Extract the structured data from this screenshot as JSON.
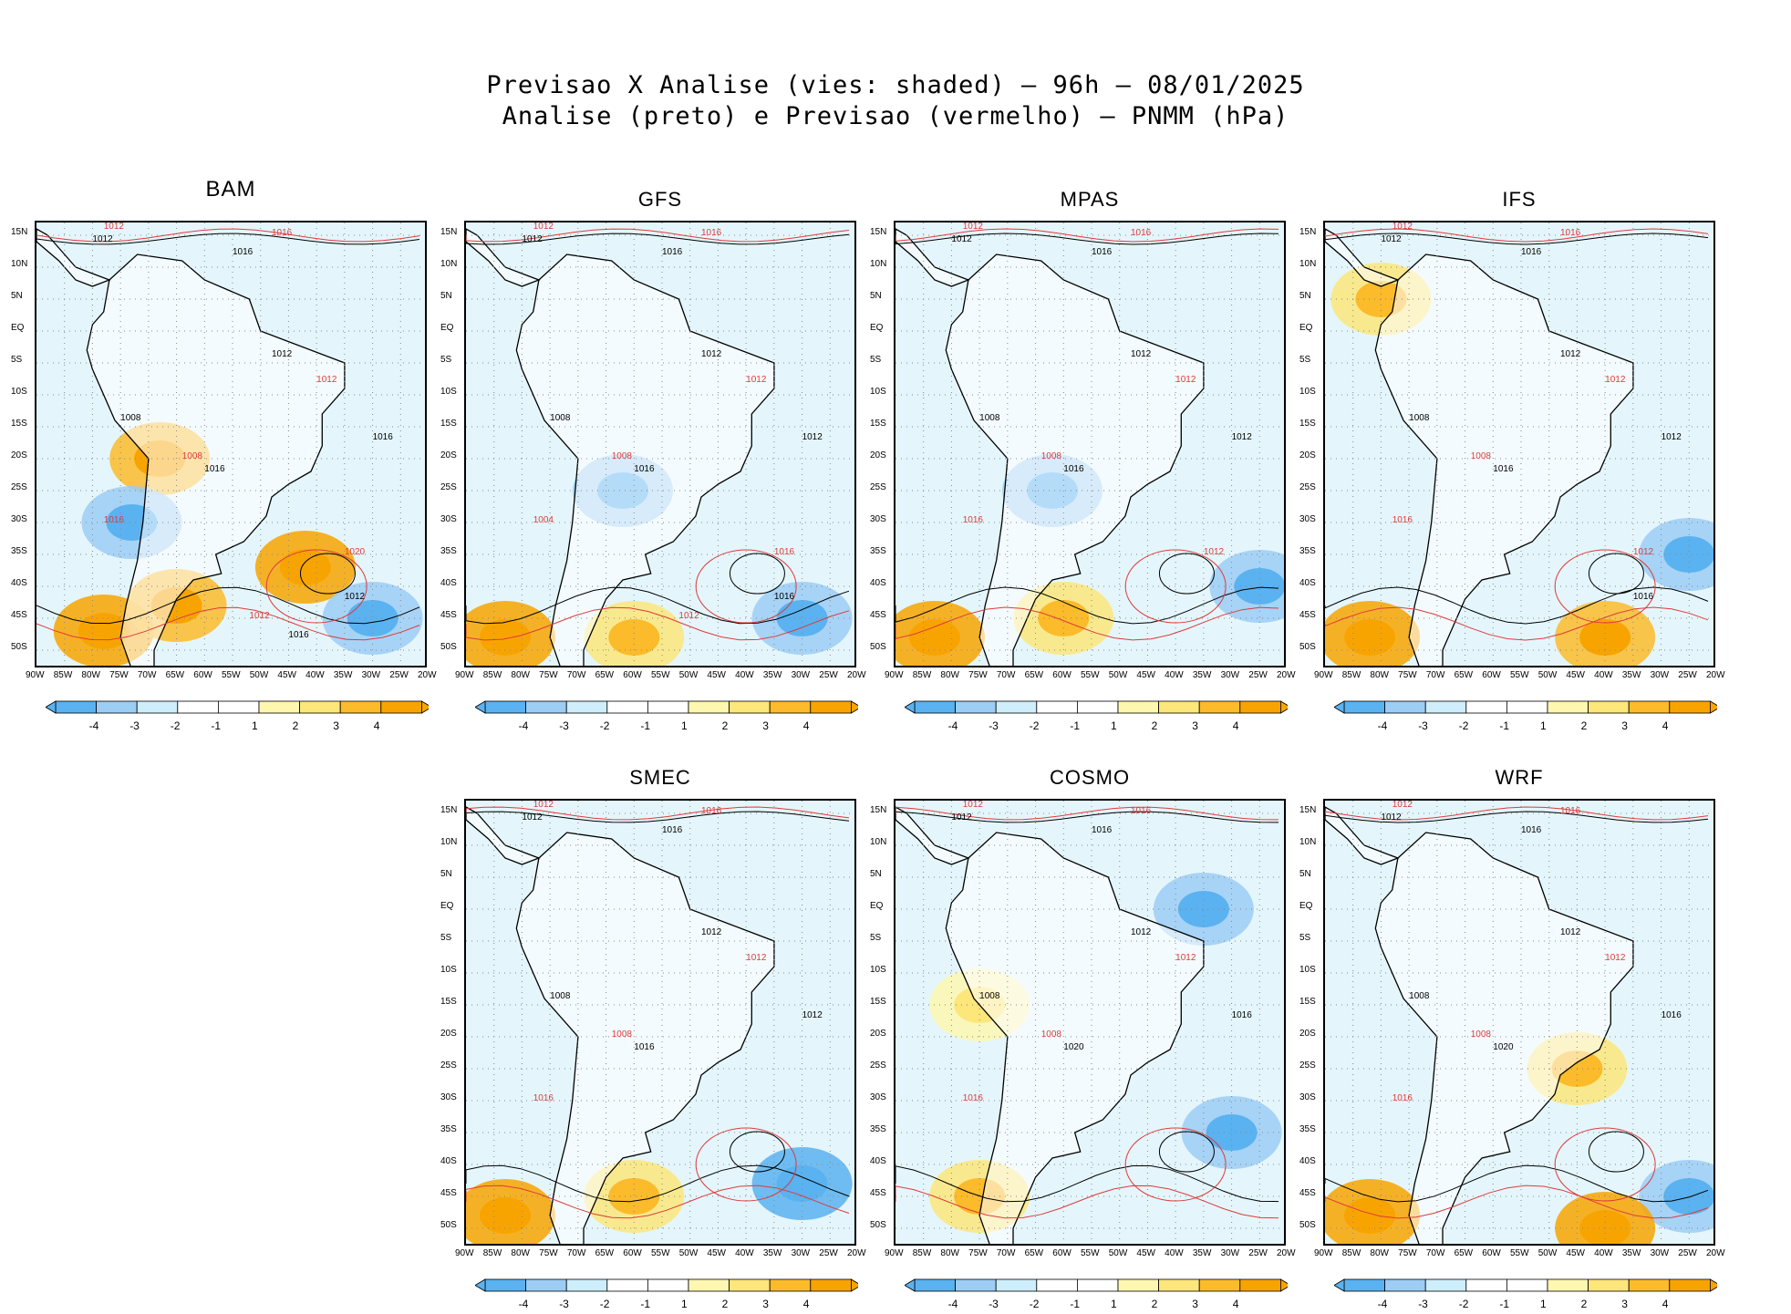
{
  "titles": {
    "line1": "Previsao X Analise (vies: shaded) – 96h – 08/01/2025",
    "line2": "Analise (preto) e Previsao (vermelho) – PNMM (hPa)"
  },
  "colors": {
    "neg4": "#5ab2f0",
    "neg3": "#9ccdf5",
    "neg2": "#cdeefa",
    "neg1": "#ffffff",
    "pos1": "#fdf7b0",
    "pos2": "#fde67a",
    "pos3": "#fbbb2a",
    "pos4": "#f8a400",
    "analysis_contour": "#000000",
    "forecast_contour": "#e03a3a"
  },
  "chart_data": [
    {
      "type": "heatmap",
      "model": "BAM",
      "title": "BAM",
      "analysis_labels": [
        "1012",
        "1016",
        "1012",
        "1008",
        "1016",
        "1016",
        "1012",
        "1016"
      ],
      "forecast_labels": [
        "1012",
        "1016",
        "1012",
        "1008",
        "1016",
        "1020",
        "1012"
      ],
      "bias_features": [
        {
          "lat": -37,
          "lon": -42,
          "bias": 4
        },
        {
          "lat": -20,
          "lon": -68,
          "bias": 3
        },
        {
          "lat": -47,
          "lon": -78,
          "bias": 4
        },
        {
          "lat": -43,
          "lon": -65,
          "bias": 3
        },
        {
          "lat": -30,
          "lon": -73,
          "bias": -3
        },
        {
          "lat": -45,
          "lon": -30,
          "bias": -3
        }
      ]
    },
    {
      "type": "heatmap",
      "model": "GFS",
      "title": "GFS",
      "analysis_labels": [
        "1012",
        "1016",
        "1012",
        "1008",
        "1016",
        "1012",
        "1016"
      ],
      "forecast_labels": [
        "1012",
        "1016",
        "1012",
        "1008",
        "1004",
        "1016",
        "1012"
      ],
      "bias_features": [
        {
          "lat": -45,
          "lon": -30,
          "bias": -3
        },
        {
          "lat": -25,
          "lon": -62,
          "bias": -3
        },
        {
          "lat": -48,
          "lon": -83,
          "bias": 4
        },
        {
          "lat": -48,
          "lon": -60,
          "bias": 2
        }
      ]
    },
    {
      "type": "heatmap",
      "model": "MPAS",
      "title": "MPAS",
      "analysis_labels": [
        "1012",
        "1016",
        "1012",
        "1008",
        "1016",
        "1012"
      ],
      "forecast_labels": [
        "1012",
        "1016",
        "1012",
        "1008",
        "1016",
        "1012"
      ],
      "bias_features": [
        {
          "lat": -40,
          "lon": -25,
          "bias": -3
        },
        {
          "lat": -25,
          "lon": -62,
          "bias": -3
        },
        {
          "lat": -48,
          "lon": -83,
          "bias": 4
        },
        {
          "lat": -45,
          "lon": -60,
          "bias": 2
        }
      ]
    },
    {
      "type": "heatmap",
      "model": "IFS",
      "title": "IFS",
      "analysis_labels": [
        "1012",
        "1016",
        "1012",
        "1008",
        "1016",
        "1012",
        "1016"
      ],
      "forecast_labels": [
        "1012",
        "1016",
        "1012",
        "1008",
        "1016",
        "1012"
      ],
      "bias_features": [
        {
          "lat": -35,
          "lon": -25,
          "bias": -3
        },
        {
          "lat": -48,
          "lon": -82,
          "bias": 4
        },
        {
          "lat": -48,
          "lon": -40,
          "bias": 3
        },
        {
          "lat": 5,
          "lon": -80,
          "bias": 2
        }
      ]
    },
    {
      "type": "heatmap",
      "model": "SMEC",
      "title": "SMEC",
      "analysis_labels": [
        "1012",
        "1016",
        "1012",
        "1008",
        "1016",
        "1012"
      ],
      "forecast_labels": [
        "1012",
        "1016",
        "1012",
        "1008",
        "1016"
      ],
      "bias_features": [
        {
          "lat": -43,
          "lon": -30,
          "bias": -4
        },
        {
          "lat": -48,
          "lon": -83,
          "bias": 4
        },
        {
          "lat": -45,
          "lon": -60,
          "bias": 2
        }
      ]
    },
    {
      "type": "heatmap",
      "model": "COSMO",
      "title": "COSMO",
      "analysis_labels": [
        "1012",
        "1016",
        "1012",
        "1008",
        "1020",
        "1016"
      ],
      "forecast_labels": [
        "1012",
        "1016",
        "1012",
        "1008",
        "1016"
      ],
      "bias_features": [
        {
          "lat": 0,
          "lon": -35,
          "bias": -3
        },
        {
          "lat": -35,
          "lon": -30,
          "bias": -3
        },
        {
          "lat": -45,
          "lon": -75,
          "bias": 2
        },
        {
          "lat": -15,
          "lon": -75,
          "bias": 1
        }
      ]
    },
    {
      "type": "heatmap",
      "model": "WRF",
      "title": "WRF",
      "analysis_labels": [
        "1012",
        "1016",
        "1012",
        "1008",
        "1020",
        "1016"
      ],
      "forecast_labels": [
        "1012",
        "1016",
        "1012",
        "1008",
        "1016"
      ],
      "bias_features": [
        {
          "lat": -45,
          "lon": -25,
          "bias": -3
        },
        {
          "lat": -48,
          "lon": -82,
          "bias": 4
        },
        {
          "lat": -50,
          "lon": -40,
          "bias": 4
        },
        {
          "lat": -25,
          "lon": -45,
          "bias": 2
        }
      ]
    }
  ],
  "axes": {
    "y_ticks": [
      "15N",
      "10N",
      "5N",
      "EQ",
      "5S",
      "10S",
      "15S",
      "20S",
      "25S",
      "30S",
      "35S",
      "40S",
      "45S",
      "50S"
    ],
    "x_ticks": [
      "90W",
      "85W",
      "80W",
      "75W",
      "70W",
      "65W",
      "60W",
      "55W",
      "50W",
      "45W",
      "40W",
      "35W",
      "30W",
      "25W",
      "20W"
    ],
    "lat_range": [
      -53,
      17
    ],
    "lon_range": [
      -90,
      -20
    ]
  },
  "colorbar": {
    "labels": [
      "-4",
      "-3",
      "-2",
      "-1",
      "1",
      "2",
      "3",
      "4"
    ]
  }
}
